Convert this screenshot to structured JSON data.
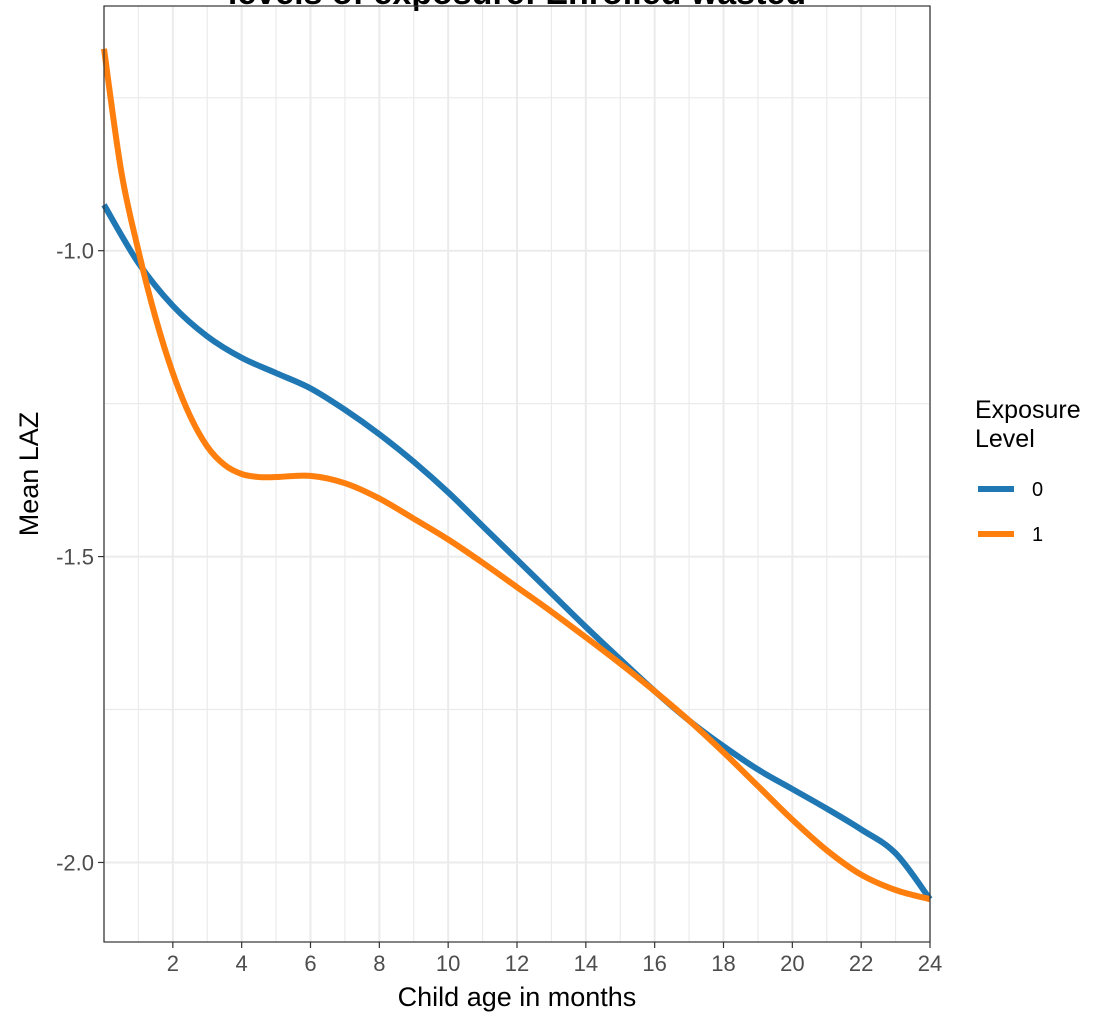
{
  "chart_data": {
    "type": "line",
    "title": "levels of exposure: Enrolled wasted",
    "xlabel": "Child age in months",
    "ylabel": "Mean LAZ",
    "xlim": [
      0,
      24
    ],
    "ylim": [
      -2.13,
      -0.6
    ],
    "x_ticks": [
      2,
      4,
      6,
      8,
      10,
      12,
      14,
      16,
      18,
      20,
      22,
      24
    ],
    "y_ticks": [
      -1.0,
      -1.5,
      -2.0
    ],
    "y_tick_labels": [
      "-1.0",
      "-1.5",
      "-2.0"
    ],
    "grid": true,
    "legend": {
      "title": [
        "Exposure",
        "Level"
      ],
      "position": "right"
    },
    "series": [
      {
        "name": "0",
        "color": "#1f77b4",
        "x": [
          0,
          1,
          2,
          3,
          4,
          5,
          6,
          7,
          8,
          9,
          10,
          11,
          12,
          13,
          14,
          15,
          16,
          17,
          18,
          19,
          20,
          21,
          22,
          23,
          24
        ],
        "y": [
          -0.925,
          -1.02,
          -1.09,
          -1.14,
          -1.175,
          -1.2,
          -1.225,
          -1.26,
          -1.3,
          -1.345,
          -1.395,
          -1.45,
          -1.505,
          -1.56,
          -1.615,
          -1.668,
          -1.72,
          -1.768,
          -1.81,
          -1.848,
          -1.88,
          -1.912,
          -1.946,
          -1.985,
          -2.06
        ]
      },
      {
        "name": "1",
        "color": "#ff7f0e",
        "x": [
          0,
          0.5,
          1,
          1.5,
          2,
          2.5,
          3,
          3.5,
          4,
          4.5,
          5,
          6,
          7,
          8,
          9,
          10,
          11,
          12,
          13,
          14,
          15,
          16,
          17,
          18,
          19,
          20,
          21,
          22,
          23,
          24
        ],
        "y": [
          -0.67,
          -0.87,
          -1.0,
          -1.11,
          -1.2,
          -1.27,
          -1.32,
          -1.35,
          -1.365,
          -1.37,
          -1.37,
          -1.368,
          -1.38,
          -1.405,
          -1.438,
          -1.472,
          -1.51,
          -1.55,
          -1.59,
          -1.632,
          -1.675,
          -1.72,
          -1.768,
          -1.82,
          -1.875,
          -1.93,
          -1.98,
          -2.02,
          -2.045,
          -2.06
        ]
      }
    ]
  }
}
